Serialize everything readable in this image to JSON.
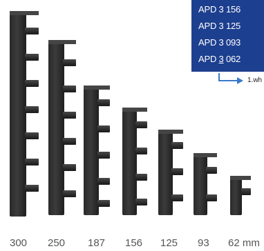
{
  "callout": {
    "codes": [
      {
        "prefix": "APD 3 156",
        "underline": "",
        "suffix": ""
      },
      {
        "prefix": "APD 3 125",
        "underline": "",
        "suffix": ""
      },
      {
        "prefix": "APD 3 093",
        "underline": "",
        "suffix": ""
      },
      {
        "prefix": "APD ",
        "underline": "3",
        "suffix": " 062"
      }
    ],
    "pointer_text": "1.wh"
  },
  "sizes": [
    "300",
    "250",
    "187",
    "156",
    "125",
    "93",
    "62 mm"
  ],
  "colors": {
    "callout_bg": "#1d3f8f",
    "pointer": "#3a78c9",
    "profile": "#2f2f2f",
    "size_text": "#555555"
  }
}
